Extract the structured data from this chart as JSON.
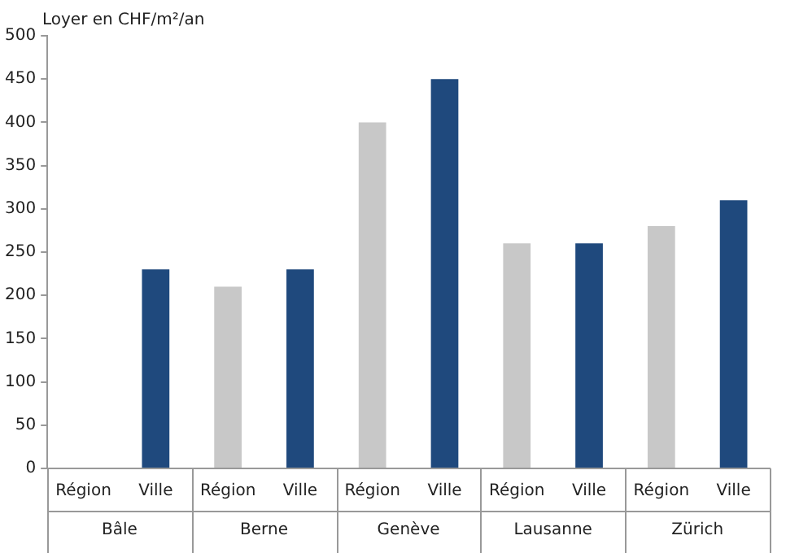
{
  "chart_data": {
    "type": "bar",
    "ylabel": "Loyer en CHF/m²/an",
    "categories": [
      "Bâle",
      "Berne",
      "Genève",
      "Lausanne",
      "Zürich"
    ],
    "series": [
      {
        "name": "Région",
        "color": "#c8c8c8",
        "values": [
          null,
          210,
          400,
          260,
          280
        ]
      },
      {
        "name": "Ville",
        "color": "#1f497d",
        "values": [
          230,
          230,
          450,
          260,
          310
        ]
      }
    ],
    "ylim": [
      0,
      500
    ],
    "yticks": [
      0,
      50,
      100,
      150,
      200,
      250,
      300,
      350,
      400,
      450,
      500
    ]
  }
}
